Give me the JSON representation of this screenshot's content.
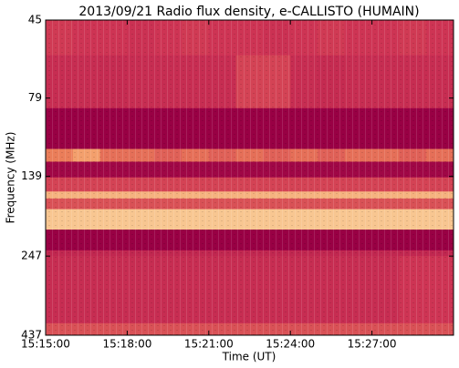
{
  "chart_data": {
    "type": "heatmap",
    "title": "2013/09/21  Radio flux density, e-CALLISTO (HUMAIN)",
    "x_label": "Time (UT)",
    "y_label": "Frequency (MHz)",
    "x_bins": [
      "15:15:00",
      "15:16:00",
      "15:17:00",
      "15:18:00",
      "15:19:00",
      "15:20:00",
      "15:21:00",
      "15:22:00",
      "15:23:00",
      "15:24:00",
      "15:25:00",
      "15:26:00",
      "15:27:00",
      "15:28:00",
      "15:29:00",
      "15:30:00"
    ],
    "xlim": [
      "15:15:00",
      "15:30:00"
    ],
    "xticks": [
      "15:15:00",
      "15:18:00",
      "15:21:00",
      "15:24:00",
      "15:27:00"
    ],
    "y_bins": [
      45,
      58,
      85,
      114,
      125,
      140,
      155,
      163,
      176,
      204,
      237,
      247,
      401,
      437
    ],
    "ylim": [
      45,
      437
    ],
    "yticks": [
      45,
      79,
      139,
      247,
      437
    ],
    "y_scale": "log",
    "y_inverted": true,
    "zlim": [
      0,
      1
    ],
    "values": [
      [
        0.42,
        0.4,
        0.4,
        0.38,
        0.4,
        0.42,
        0.4,
        0.4,
        0.38,
        0.4,
        0.42,
        0.4,
        0.4,
        0.42,
        0.4
      ],
      [
        0.35,
        0.35,
        0.33,
        0.35,
        0.35,
        0.35,
        0.35,
        0.45,
        0.45,
        0.35,
        0.33,
        0.35,
        0.35,
        0.35,
        0.35
      ],
      [
        0,
        0,
        0,
        0,
        0,
        0,
        0,
        0,
        0,
        0,
        0,
        0,
        0,
        0,
        0
      ],
      [
        0.65,
        0.75,
        0.6,
        0.6,
        0.55,
        0.6,
        0.55,
        0.6,
        0.55,
        0.6,
        0.55,
        0.6,
        0.6,
        0.55,
        0.6
      ],
      [
        0.05,
        0.05,
        0.05,
        0.05,
        0.05,
        0.05,
        0.05,
        0.05,
        0.05,
        0.05,
        0.05,
        0.05,
        0.05,
        0.05,
        0.05
      ],
      [
        0.45,
        0.45,
        0.45,
        0.45,
        0.45,
        0.45,
        0.45,
        0.45,
        0.45,
        0.45,
        0.45,
        0.45,
        0.45,
        0.45,
        0.45
      ],
      [
        0.8,
        0.8,
        0.8,
        0.8,
        0.8,
        0.8,
        0.8,
        0.8,
        0.8,
        0.8,
        0.8,
        0.8,
        0.8,
        0.8,
        0.8
      ],
      [
        0.5,
        0.5,
        0.5,
        0.5,
        0.5,
        0.5,
        0.5,
        0.5,
        0.5,
        0.5,
        0.5,
        0.5,
        0.5,
        0.5,
        0.5
      ],
      [
        0.85,
        0.85,
        0.85,
        0.85,
        0.85,
        0.85,
        0.85,
        0.85,
        0.85,
        0.85,
        0.85,
        0.85,
        0.85,
        0.85,
        0.85
      ],
      [
        0,
        0,
        0,
        0,
        0,
        0,
        0,
        0,
        0,
        0,
        0,
        0,
        0,
        0,
        0
      ],
      [
        0.3,
        0.3,
        0.3,
        0.3,
        0.3,
        0.3,
        0.3,
        0.3,
        0.3,
        0.3,
        0.3,
        0.3,
        0.3,
        0.3,
        0.3
      ],
      [
        0.35,
        0.35,
        0.35,
        0.35,
        0.35,
        0.35,
        0.35,
        0.35,
        0.35,
        0.35,
        0.35,
        0.35,
        0.35,
        0.4,
        0.4
      ],
      [
        0.5,
        0.5,
        0.5,
        0.5,
        0.5,
        0.5,
        0.5,
        0.5,
        0.5,
        0.5,
        0.5,
        0.5,
        0.5,
        0.5,
        0.5
      ]
    ]
  }
}
